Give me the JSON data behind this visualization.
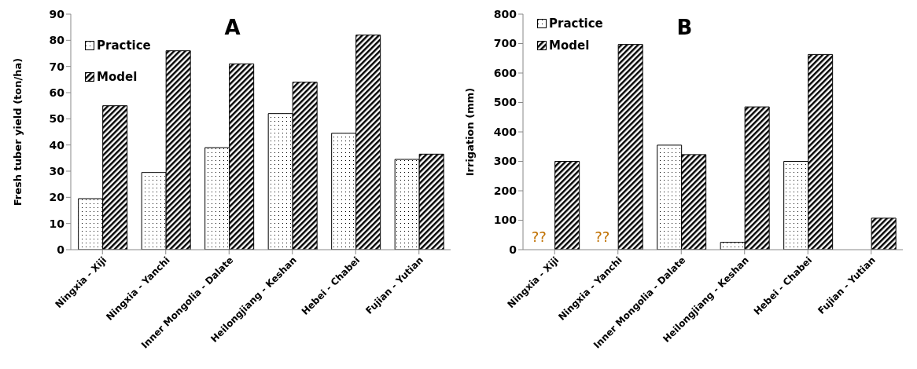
{
  "chart_data": [
    {
      "type": "bar",
      "title": "A",
      "ylabel": "Fresh tuber yield (ton/ha)",
      "categories": [
        "Ningxia - Xiji",
        "Ningxia - Yanchi",
        "Inner Mongolia - Dalate",
        "Heilongjiang - Keshan",
        "Hebei - Chabei",
        "Fujian - Yutian"
      ],
      "series": [
        {
          "name": "Practice",
          "color": "#000000",
          "values": [
            19.5,
            29.5,
            39,
            52,
            44.5,
            34.5
          ]
        },
        {
          "name": "Model",
          "color": "#000000",
          "values": [
            55,
            76,
            71,
            64,
            82,
            36.5
          ]
        }
      ],
      "ylim": [
        0,
        90
      ],
      "yticks": [
        0,
        10,
        20,
        30,
        40,
        50,
        60,
        70,
        80,
        90
      ],
      "grid": false,
      "legend": "top left"
    },
    {
      "type": "bar",
      "title": "B",
      "ylabel": "Irrigation (mm)",
      "categories": [
        "Ningxia - Xiji",
        "Ningxia - Yanchi",
        "Inner Mongolia - Dalate",
        "Heilongjiang - Keshan",
        "Hebei - Chabei",
        "Fujian - Yutian"
      ],
      "series": [
        {
          "name": "Practice",
          "color": "#000000",
          "values": [
            null,
            null,
            355,
            25,
            300,
            null
          ]
        },
        {
          "name": "Model",
          "color": "#000000",
          "values": [
            300,
            697,
            323,
            485,
            663,
            107
          ]
        }
      ],
      "ylim": [
        0,
        800
      ],
      "yticks": [
        0,
        100,
        200,
        300,
        400,
        500,
        600,
        700,
        800
      ],
      "grid": false,
      "legend": "top left",
      "annotations": [
        {
          "text": "??",
          "x": "Ningxia - Xiji",
          "y": 45
        },
        {
          "text": "??",
          "x": "Ningxia - Yanchi",
          "y": 45
        }
      ]
    }
  ]
}
